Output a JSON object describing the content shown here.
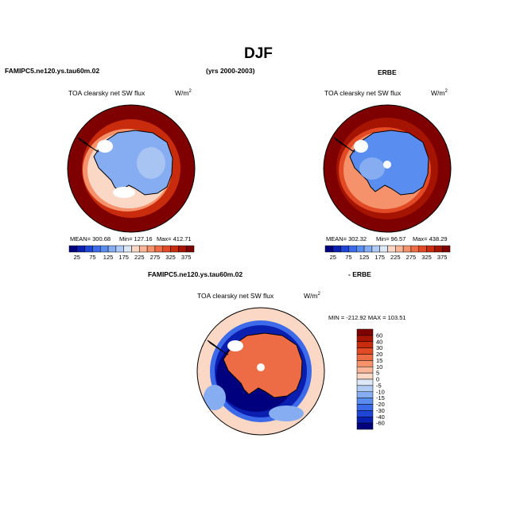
{
  "title": "DJF",
  "header": {
    "model": "FAMIPC5.ne120.ys.tau60m.02",
    "years": "(yrs 2000-2003)",
    "obs": "ERBE"
  },
  "diff_header": {
    "model": "FAMIPC5.ne120.ys.tau60m.02",
    "obs": "- ERBE"
  },
  "panels": [
    {
      "id": "model",
      "variable": "TOA clearsky net SW flux",
      "units_base": "W/m",
      "units_exp": "2",
      "mean_label": "MEAN= 300.68",
      "min_label": "Min= 127.16",
      "max_label": "Max= 412.71",
      "ticks": [
        "25",
        "75",
        "125",
        "175",
        "225",
        "275",
        "325",
        "375"
      ]
    },
    {
      "id": "obs",
      "variable": "TOA clearsky net SW flux",
      "units_base": "W/m",
      "units_exp": "2",
      "mean_label": "MEAN= 302.32",
      "min_label": "Min= 96.57",
      "max_label": "Max= 438.29",
      "ticks": [
        "25",
        "75",
        "125",
        "175",
        "225",
        "275",
        "325",
        "375"
      ]
    },
    {
      "id": "diff",
      "variable": "TOA clearsky net SW flux",
      "units_base": "W/m",
      "units_exp": "2",
      "minmax_label": "MIN = -212.92  MAX = 103.51",
      "ticks": [
        "60",
        "40",
        "30",
        "20",
        "15",
        "10",
        "5",
        "0",
        "-5",
        "-10",
        "-15",
        "-20",
        "-30",
        "-40",
        "-60"
      ]
    }
  ],
  "colors": {
    "abs_scale": [
      "#00007f",
      "#0a1fb0",
      "#1f45d6",
      "#3c6ae8",
      "#5a8df0",
      "#86acf2",
      "#b1cbf5",
      "#dde8f7",
      "#fbd8c6",
      "#f9b698",
      "#f5926c",
      "#ee6c45",
      "#e24a25",
      "#c92c0d",
      "#a51400",
      "#7f0000"
    ],
    "diff_scale": [
      "#7f0000",
      "#a51400",
      "#c92c0d",
      "#e24a25",
      "#ee6c45",
      "#f5926c",
      "#f9b698",
      "#fbd8c6",
      "#dde8f7",
      "#b1cbf5",
      "#86acf2",
      "#5a8df0",
      "#3c6ae8",
      "#1f45d6",
      "#0a1fb0",
      "#00007f"
    ]
  }
}
